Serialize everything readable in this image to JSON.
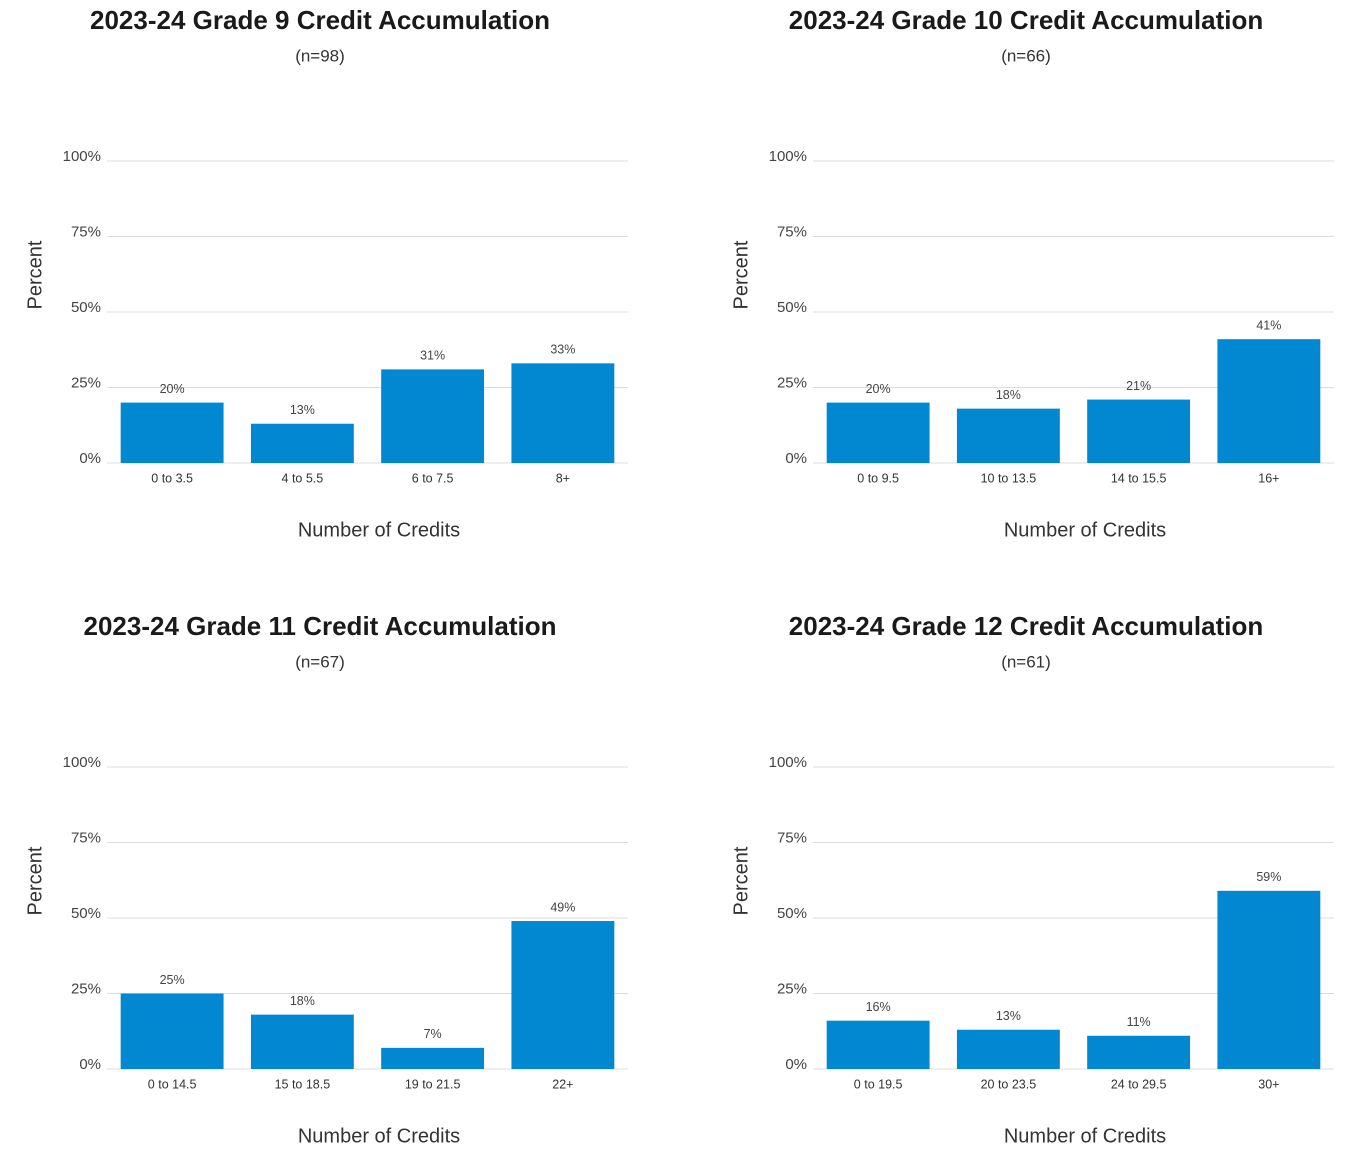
{
  "chart_data": [
    {
      "type": "bar",
      "title": "2023-24 Grade 9 Credit Accumulation",
      "subtitle": "(n=98)",
      "x_label": "Number of Credits",
      "y_label": "Percent",
      "categories": [
        "0 to 3.5",
        "4 to 5.5",
        "6 to 7.5",
        "8+"
      ],
      "values": [
        20,
        13,
        31,
        33
      ],
      "value_labels": [
        "20%",
        "13%",
        "31%",
        "33%"
      ],
      "color": "#0288d1",
      "ylim": [
        0,
        100
      ],
      "yticks": [
        {
          "value": 0,
          "label": "0%"
        },
        {
          "value": 25,
          "label": "25%"
        },
        {
          "value": 50,
          "label": "50%"
        },
        {
          "value": 75,
          "label": "75%"
        },
        {
          "value": 100,
          "label": "100%"
        }
      ],
      "grid": true
    },
    {
      "type": "bar",
      "title": "2023-24 Grade 10 Credit Accumulation",
      "subtitle": "(n=66)",
      "x_label": "Number of Credits",
      "y_label": "Percent",
      "categories": [
        "0 to 9.5",
        "10 to 13.5",
        "14 to 15.5",
        "16+"
      ],
      "values": [
        20,
        18,
        21,
        41
      ],
      "value_labels": [
        "20%",
        "18%",
        "21%",
        "41%"
      ],
      "color": "#0288d1",
      "ylim": [
        0,
        100
      ],
      "yticks": [
        {
          "value": 0,
          "label": "0%"
        },
        {
          "value": 25,
          "label": "25%"
        },
        {
          "value": 50,
          "label": "50%"
        },
        {
          "value": 75,
          "label": "75%"
        },
        {
          "value": 100,
          "label": "100%"
        }
      ],
      "grid": true
    },
    {
      "type": "bar",
      "title": "2023-24 Grade 11 Credit Accumulation",
      "subtitle": "(n=67)",
      "x_label": "Number of Credits",
      "y_label": "Percent",
      "categories": [
        "0 to 14.5",
        "15 to 18.5",
        "19 to 21.5",
        "22+"
      ],
      "values": [
        25,
        18,
        7,
        49
      ],
      "value_labels": [
        "25%",
        "18%",
        "7%",
        "49%"
      ],
      "color": "#0288d1",
      "ylim": [
        0,
        100
      ],
      "yticks": [
        {
          "value": 0,
          "label": "0%"
        },
        {
          "value": 25,
          "label": "25%"
        },
        {
          "value": 50,
          "label": "50%"
        },
        {
          "value": 75,
          "label": "75%"
        },
        {
          "value": 100,
          "label": "100%"
        }
      ],
      "grid": true
    },
    {
      "type": "bar",
      "title": "2023-24 Grade 12 Credit Accumulation",
      "subtitle": "(n=61)",
      "x_label": "Number of Credits",
      "y_label": "Percent",
      "categories": [
        "0 to 19.5",
        "20 to 23.5",
        "24 to 29.5",
        "30+"
      ],
      "values": [
        16,
        13,
        11,
        59
      ],
      "value_labels": [
        "16%",
        "13%",
        "11%",
        "59%"
      ],
      "color": "#0288d1",
      "ylim": [
        0,
        100
      ],
      "yticks": [
        {
          "value": 0,
          "label": "0%"
        },
        {
          "value": 25,
          "label": "25%"
        },
        {
          "value": 50,
          "label": "50%"
        },
        {
          "value": 75,
          "label": "75%"
        },
        {
          "value": 100,
          "label": "100%"
        }
      ],
      "grid": true
    }
  ]
}
